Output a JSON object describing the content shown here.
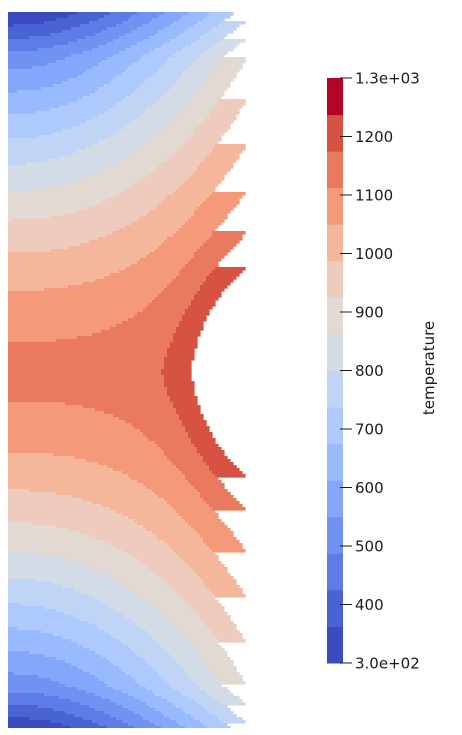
{
  "chart_data": {
    "type": "heatmap",
    "description_field": "temperature",
    "colorbar": {
      "title": "temperature",
      "range": [
        300,
        1300
      ],
      "tick_labels": [
        "1.3e+03",
        "1200",
        "1100",
        "1000",
        "900",
        "800",
        "700",
        "600",
        "500",
        "400",
        "3.0e+02"
      ],
      "tick_values": [
        1300,
        1200,
        1100,
        1000,
        900,
        800,
        700,
        600,
        500,
        400,
        300
      ],
      "num_bands": 16,
      "colormap": [
        "#3b4cc0",
        "#4a63d3",
        "#5d7ce6",
        "#7093f3",
        "#84a7fc",
        "#99bafe",
        "#aec9fc",
        "#c0d4f5",
        "#d3dbe7",
        "#e2d9d3",
        "#eecbbc",
        "#f5b79b",
        "#f4997a",
        "#e97a5d",
        "#d65243",
        "#b40426"
      ],
      "orientation": "vertical",
      "placement": "right"
    },
    "field": {
      "min": 300,
      "max": 1300,
      "hot_side": "right",
      "hot_position": "middle",
      "cold_edges": [
        "top",
        "bottom"
      ]
    }
  }
}
